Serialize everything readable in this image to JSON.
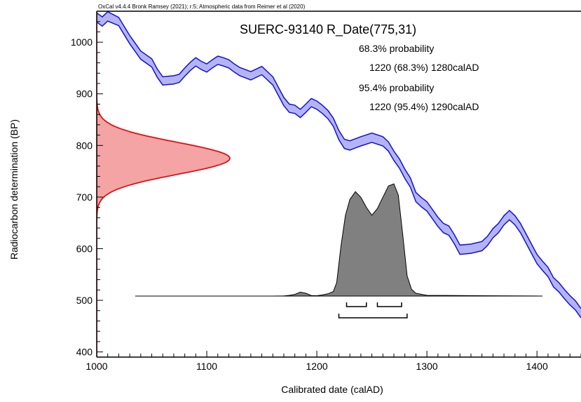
{
  "chart_data": {
    "type": "area",
    "credit": "OxCal v4.4.4 Bronk Ramsey (2021); r:5; Atmospheric data from Reimer et al (2020)",
    "title": "SUERC-93140 R_Date(775,31)",
    "xlabel": "Calibrated date (calAD)",
    "ylabel": "Radiocarbon determination (BP)",
    "xlim": [
      1000,
      1440
    ],
    "ylim": [
      390,
      1060
    ],
    "x_ticks": [
      1000,
      1100,
      1200,
      1300,
      1400
    ],
    "y_ticks": [
      400,
      500,
      600,
      700,
      800,
      900,
      1000
    ],
    "annotations": [
      {
        "text": "68.3% probability",
        "indent": false
      },
      {
        "text": "1220 (68.3%) 1280calAD",
        "indent": true
      },
      {
        "text": "95.4% probability",
        "indent": false
      },
      {
        "text": "1220 (95.4%) 1290calAD",
        "indent": true
      }
    ],
    "colors": {
      "curve_line": "#1010e0",
      "curve_fill": "#b4b4f4",
      "radiocarbon_line": "#e01010",
      "radiocarbon_fill": "#f4a4a4",
      "posterior_fill": "#808080",
      "posterior_line": "#000000"
    },
    "calibration_curve": {
      "name": "IntCal20",
      "x": [
        1000,
        1005,
        1010,
        1020,
        1030,
        1040,
        1050,
        1055,
        1060,
        1070,
        1075,
        1080,
        1085,
        1090,
        1095,
        1100,
        1105,
        1110,
        1115,
        1120,
        1125,
        1130,
        1140,
        1150,
        1160,
        1165,
        1170,
        1175,
        1180,
        1185,
        1190,
        1195,
        1200,
        1205,
        1210,
        1215,
        1220,
        1225,
        1230,
        1240,
        1250,
        1260,
        1265,
        1270,
        1275,
        1280,
        1285,
        1290,
        1295,
        1300,
        1305,
        1310,
        1315,
        1320,
        1325,
        1330,
        1340,
        1350,
        1355,
        1360,
        1365,
        1370,
        1375,
        1380,
        1385,
        1390,
        1395,
        1400,
        1405,
        1410,
        1415,
        1420,
        1425,
        1430,
        1435,
        1440
      ],
      "mean": [
        1048,
        1040,
        1050,
        1040,
        1005,
        975,
        960,
        940,
        925,
        927,
        930,
        942,
        953,
        962,
        955,
        950,
        958,
        965,
        962,
        958,
        950,
        943,
        935,
        945,
        925,
        905,
        885,
        872,
        870,
        862,
        872,
        883,
        878,
        870,
        860,
        845,
        820,
        803,
        800,
        808,
        815,
        808,
        798,
        780,
        765,
        745,
        728,
        700,
        690,
        682,
        667,
        652,
        640,
        635,
        618,
        598,
        600,
        605,
        615,
        630,
        640,
        655,
        665,
        655,
        640,
        620,
        600,
        580,
        567,
        555,
        535,
        525,
        512,
        500,
        490,
        475
      ],
      "sigma": [
        9,
        9,
        9,
        8,
        8,
        8,
        8,
        8,
        8,
        8,
        8,
        8,
        8,
        8,
        8,
        8,
        8,
        8,
        8,
        8,
        8,
        8,
        8,
        8,
        8,
        8,
        8,
        8,
        8,
        8,
        8,
        8,
        8,
        8,
        8,
        8,
        9,
        9,
        9,
        9,
        9,
        9,
        9,
        9,
        9,
        9,
        9,
        9,
        9,
        9,
        9,
        9,
        9,
        9,
        9,
        9,
        9,
        9,
        9,
        9,
        9,
        9,
        9,
        9,
        9,
        9,
        9,
        9,
        9,
        9,
        9,
        9,
        9,
        9,
        9,
        9
      ]
    },
    "radiocarbon_date": {
      "mean": 775,
      "sigma": 31
    },
    "posterior": {
      "x": [
        1035,
        1160,
        1170,
        1175,
        1180,
        1185,
        1190,
        1195,
        1200,
        1205,
        1210,
        1215,
        1218,
        1222,
        1226,
        1230,
        1235,
        1240,
        1245,
        1250,
        1255,
        1260,
        1265,
        1270,
        1274,
        1278,
        1282,
        1286,
        1290,
        1300,
        1350,
        1405
      ],
      "density": [
        0,
        0,
        0.002,
        0.006,
        0.015,
        0.035,
        0.025,
        0.005,
        0.003,
        0.01,
        0.02,
        0.04,
        0.12,
        0.45,
        0.72,
        0.86,
        0.93,
        0.88,
        0.79,
        0.72,
        0.78,
        0.88,
        0.98,
        1.0,
        0.9,
        0.55,
        0.18,
        0.06,
        0.025,
        0.006,
        0.003,
        0
      ]
    },
    "ranges": {
      "sigma1": [
        [
          1227,
          1245
        ],
        [
          1255,
          1277
        ]
      ],
      "sigma2": [
        [
          1220,
          1282
        ]
      ]
    }
  }
}
